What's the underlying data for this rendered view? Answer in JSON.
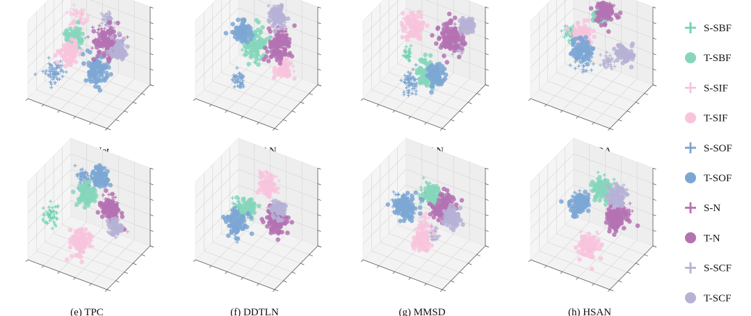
{
  "chart_data": {
    "type": "scatter",
    "projection": "3d-tsne",
    "grid": true,
    "axis_ranges": {
      "x": [
        0,
        10
      ],
      "y": [
        0,
        10
      ],
      "z": [
        0,
        10
      ]
    },
    "panels": [
      {
        "caption": "(a) ResNet",
        "clusters": [
          {
            "cls": "S-SBF",
            "x": 3.6,
            "y": 4.3,
            "z": 6.6,
            "s": 0.55,
            "n": 55
          },
          {
            "cls": "T-SBF",
            "x": 3.3,
            "y": 4.6,
            "z": 6.3,
            "s": 0.6,
            "n": 70
          },
          {
            "cls": "S-SIF",
            "x": 3.4,
            "y": 5.6,
            "z": 8.5,
            "s": 0.65,
            "n": 60
          },
          {
            "cls": "T-SIF",
            "x": 3.5,
            "y": 3.3,
            "z": 5.6,
            "s": 0.7,
            "n": 70
          },
          {
            "cls": "S-SOF",
            "x": 1.5,
            "y": 3.3,
            "z": 2.2,
            "s": 0.7,
            "n": 60
          },
          {
            "cls": "T-SOF",
            "x": 6.3,
            "y": 4.2,
            "z": 4.0,
            "s": 0.8,
            "n": 90
          },
          {
            "cls": "S-N",
            "x": 6.3,
            "y": 6.3,
            "z": 6.8,
            "s": 0.85,
            "n": 55
          },
          {
            "cls": "T-N",
            "x": 6.6,
            "y": 6.1,
            "z": 6.2,
            "s": 0.9,
            "n": 95
          },
          {
            "cls": "S-SCF",
            "x": 6.4,
            "y": 6.6,
            "z": 8.9,
            "s": 0.5,
            "n": 40
          },
          {
            "cls": "T-SCF",
            "x": 8.7,
            "y": 5.1,
            "z": 6.7,
            "s": 0.6,
            "n": 70
          }
        ]
      },
      {
        "caption": "(b) CDAN",
        "clusters": [
          {
            "cls": "S-SBF",
            "x": 4.4,
            "y": 5.2,
            "z": 5.6,
            "s": 0.7,
            "n": 60
          },
          {
            "cls": "T-SBF",
            "x": 4.6,
            "y": 5.4,
            "z": 5.6,
            "s": 0.75,
            "n": 85
          },
          {
            "cls": "S-SIF",
            "x": 9.5,
            "y": 3.4,
            "z": 5.9,
            "s": 0.45,
            "n": 40
          },
          {
            "cls": "T-SIF",
            "x": 9.3,
            "y": 3.4,
            "z": 5.5,
            "s": 0.55,
            "n": 45
          },
          {
            "cls": "S-SOF",
            "x": 4.0,
            "y": 3.0,
            "z": 2.2,
            "s": 0.55,
            "n": 45
          },
          {
            "cls": "T-SOF",
            "x": 2.5,
            "y": 6.3,
            "z": 6.2,
            "s": 0.6,
            "n": 80
          },
          {
            "cls": "S-N",
            "x": 7.6,
            "y": 5.8,
            "z": 7.8,
            "s": 0.6,
            "n": 45
          },
          {
            "cls": "T-N",
            "x": 7.4,
            "y": 5.5,
            "z": 6.4,
            "s": 0.85,
            "n": 95
          },
          {
            "cls": "S-SCF",
            "x": 6.0,
            "y": 7.6,
            "z": 8.6,
            "s": 0.55,
            "n": 40
          },
          {
            "cls": "T-SCF",
            "x": 6.2,
            "y": 7.6,
            "z": 8.8,
            "s": 0.6,
            "n": 70
          }
        ]
      },
      {
        "caption": "(c) DALN",
        "clusters": [
          {
            "cls": "S-SBF",
            "x": 3.2,
            "y": 4.5,
            "z": 4.4,
            "s": 0.35,
            "n": 30
          },
          {
            "cls": "T-SBF",
            "x": 6.4,
            "y": 3.3,
            "z": 3.8,
            "s": 0.7,
            "n": 80
          },
          {
            "cls": "S-SIF",
            "x": 3.7,
            "y": 5.2,
            "z": 8.0,
            "s": 0.8,
            "n": 60
          },
          {
            "cls": "T-SIF",
            "x": 3.6,
            "y": 5.0,
            "z": 7.6,
            "s": 0.8,
            "n": 75
          },
          {
            "cls": "S-SOF",
            "x": 4.6,
            "y": 2.8,
            "z": 2.3,
            "s": 0.7,
            "n": 60
          },
          {
            "cls": "T-SOF",
            "x": 7.3,
            "y": 3.3,
            "z": 4.0,
            "s": 0.6,
            "n": 70
          },
          {
            "cls": "S-N",
            "x": 7.6,
            "y": 6.5,
            "z": 7.2,
            "s": 0.8,
            "n": 50
          },
          {
            "cls": "T-N",
            "x": 7.5,
            "y": 6.5,
            "z": 7.0,
            "s": 0.9,
            "n": 95
          },
          {
            "cls": "S-SCF",
            "x": 8.4,
            "y": 6.4,
            "z": 6.5,
            "s": 0.45,
            "n": 35
          },
          {
            "cls": "T-SCF",
            "x": 9.1,
            "y": 7.4,
            "z": 8.7,
            "s": 0.45,
            "n": 50
          }
        ]
      },
      {
        "caption": "(d) ACDA",
        "clusters": [
          {
            "cls": "S-SBF",
            "x": 2.2,
            "y": 5.6,
            "z": 6.0,
            "s": 0.65,
            "n": 60
          },
          {
            "cls": "T-SBF",
            "x": 4.8,
            "y": 6.8,
            "z": 8.5,
            "s": 0.45,
            "n": 45
          },
          {
            "cls": "S-SIF",
            "x": 3.3,
            "y": 5.6,
            "z": 6.4,
            "s": 0.55,
            "n": 45
          },
          {
            "cls": "T-SIF",
            "x": 3.6,
            "y": 5.6,
            "z": 6.4,
            "s": 0.6,
            "n": 75
          },
          {
            "cls": "S-SOF",
            "x": 4.3,
            "y": 4.3,
            "z": 4.6,
            "s": 0.7,
            "n": 55
          },
          {
            "cls": "T-SOF",
            "x": 4.0,
            "y": 4.6,
            "z": 5.2,
            "s": 0.7,
            "n": 75
          },
          {
            "cls": "S-N",
            "x": 5.4,
            "y": 7.6,
            "z": 9.5,
            "s": 0.65,
            "n": 45
          },
          {
            "cls": "T-N",
            "x": 5.4,
            "y": 7.4,
            "z": 9.2,
            "s": 0.75,
            "n": 90
          },
          {
            "cls": "S-SCF",
            "x": 7.1,
            "y": 4.8,
            "z": 4.9,
            "s": 0.45,
            "n": 35
          },
          {
            "cls": "T-SCF",
            "x": 9.0,
            "y": 5.2,
            "z": 6.4,
            "s": 0.55,
            "n": 65
          }
        ]
      },
      {
        "caption": "(e) TPC",
        "clusters": [
          {
            "cls": "S-SBF",
            "x": 1.0,
            "y": 3.4,
            "z": 4.3,
            "s": 0.55,
            "n": 45
          },
          {
            "cls": "T-SBF",
            "x": 4.4,
            "y": 5.6,
            "z": 7.0,
            "s": 0.65,
            "n": 85
          },
          {
            "cls": "S-SIF",
            "x": 5.0,
            "y": 3.2,
            "z": 3.0,
            "s": 0.7,
            "n": 55
          },
          {
            "cls": "T-SIF",
            "x": 5.2,
            "y": 2.8,
            "z": 2.6,
            "s": 0.75,
            "n": 75
          },
          {
            "cls": "S-SOF",
            "x": 3.8,
            "y": 6.2,
            "z": 8.4,
            "s": 0.6,
            "n": 60
          },
          {
            "cls": "T-SOF",
            "x": 5.4,
            "y": 6.8,
            "z": 8.8,
            "s": 0.55,
            "n": 80
          },
          {
            "cls": "S-N",
            "x": 7.3,
            "y": 5.6,
            "z": 6.7,
            "s": 0.6,
            "n": 45
          },
          {
            "cls": "T-N",
            "x": 7.6,
            "y": 5.4,
            "z": 6.1,
            "s": 0.7,
            "n": 90
          },
          {
            "cls": "S-SCF",
            "x": 8.5,
            "y": 4.4,
            "z": 5.1,
            "s": 0.5,
            "n": 35
          },
          {
            "cls": "T-SCF",
            "x": 8.6,
            "y": 4.6,
            "z": 5.0,
            "s": 0.45,
            "n": 40
          }
        ]
      },
      {
        "caption": "(f) DDTLN",
        "clusters": [
          {
            "cls": "S-SBF",
            "x": 3.2,
            "y": 4.8,
            "z": 5.2,
            "s": 0.65,
            "n": 50
          },
          {
            "cls": "T-SBF",
            "x": 3.8,
            "y": 5.0,
            "z": 5.4,
            "s": 0.55,
            "n": 65
          },
          {
            "cls": "S-SIF",
            "x": 5.6,
            "y": 6.6,
            "z": 8.6,
            "s": 0.65,
            "n": 55
          },
          {
            "cls": "T-SIF",
            "x": 5.6,
            "y": 6.3,
            "z": 8.0,
            "s": 0.6,
            "n": 65
          },
          {
            "cls": "S-SOF",
            "x": 3.4,
            "y": 3.2,
            "z": 3.9,
            "s": 0.5,
            "n": 40
          },
          {
            "cls": "T-SOF",
            "x": 3.0,
            "y": 3.8,
            "z": 4.0,
            "s": 0.7,
            "n": 85
          },
          {
            "cls": "S-N",
            "x": 7.8,
            "y": 4.7,
            "z": 5.4,
            "s": 0.55,
            "n": 40
          },
          {
            "cls": "T-N",
            "x": 7.6,
            "y": 4.8,
            "z": 5.2,
            "s": 0.75,
            "n": 100
          },
          {
            "cls": "S-SCF",
            "x": 7.3,
            "y": 5.4,
            "z": 6.3,
            "s": 0.5,
            "n": 40
          },
          {
            "cls": "T-SCF",
            "x": 7.6,
            "y": 5.3,
            "z": 6.4,
            "s": 0.5,
            "n": 50
          }
        ]
      },
      {
        "caption": "(g) MMSD",
        "clusters": [
          {
            "cls": "S-SBF",
            "x": 4.8,
            "y": 6.3,
            "z": 7.0,
            "s": 0.65,
            "n": 50
          },
          {
            "cls": "T-SBF",
            "x": 5.6,
            "y": 6.0,
            "z": 7.0,
            "s": 0.55,
            "n": 65
          },
          {
            "cls": "S-SIF",
            "x": 5.6,
            "y": 4.0,
            "z": 4.6,
            "s": 0.45,
            "n": 40
          },
          {
            "cls": "T-SIF",
            "x": 5.8,
            "y": 3.0,
            "z": 3.1,
            "s": 0.6,
            "n": 65
          },
          {
            "cls": "S-SOF",
            "x": 2.2,
            "y": 5.0,
            "z": 5.2,
            "s": 0.65,
            "n": 55
          },
          {
            "cls": "T-SOF",
            "x": 2.6,
            "y": 5.0,
            "z": 5.0,
            "s": 0.75,
            "n": 90
          },
          {
            "cls": "S-N",
            "x": 7.1,
            "y": 5.8,
            "z": 6.6,
            "s": 0.7,
            "n": 45
          },
          {
            "cls": "T-N",
            "x": 7.1,
            "y": 5.6,
            "z": 6.2,
            "s": 0.8,
            "n": 90
          },
          {
            "cls": "S-SCF",
            "x": 6.8,
            "y": 3.8,
            "z": 3.9,
            "s": 0.45,
            "n": 35
          },
          {
            "cls": "T-SCF",
            "x": 8.6,
            "y": 5.0,
            "z": 5.9,
            "s": 0.55,
            "n": 65
          }
        ]
      },
      {
        "caption": "(h) HSAN",
        "clusters": [
          {
            "cls": "S-SBF",
            "x": 5.4,
            "y": 6.6,
            "z": 8.0,
            "s": 0.7,
            "n": 55
          },
          {
            "cls": "T-SBF",
            "x": 5.6,
            "y": 6.4,
            "z": 7.6,
            "s": 0.65,
            "n": 75
          },
          {
            "cls": "S-SIF",
            "x": 5.8,
            "y": 2.9,
            "z": 2.4,
            "s": 0.6,
            "n": 45
          },
          {
            "cls": "T-SIF",
            "x": 5.8,
            "y": 2.8,
            "z": 2.3,
            "s": 0.65,
            "n": 85
          },
          {
            "cls": "S-SOF",
            "x": 3.0,
            "y": 5.4,
            "z": 5.4,
            "s": 0.6,
            "n": 45
          },
          {
            "cls": "T-SOF",
            "x": 3.2,
            "y": 5.4,
            "z": 5.4,
            "s": 0.7,
            "n": 95
          },
          {
            "cls": "S-N",
            "x": 8.2,
            "y": 5.6,
            "z": 6.0,
            "s": 0.55,
            "n": 40
          },
          {
            "cls": "T-N",
            "x": 8.0,
            "y": 5.2,
            "z": 5.6,
            "s": 0.75,
            "n": 90
          },
          {
            "cls": "S-SCF",
            "x": 7.6,
            "y": 6.8,
            "z": 7.6,
            "s": 0.5,
            "n": 40
          },
          {
            "cls": "T-SCF",
            "x": 7.4,
            "y": 6.4,
            "z": 7.3,
            "s": 0.6,
            "n": 60
          }
        ]
      }
    ]
  },
  "legend": {
    "placement": "right",
    "items": [
      {
        "label": "S-SBF",
        "marker": "plus",
        "color": "#72d1b4"
      },
      {
        "label": "T-SBF",
        "marker": "circle",
        "color": "#86d6bc"
      },
      {
        "label": "S-SIF",
        "marker": "plus",
        "color": "#f7c3dc"
      },
      {
        "label": "T-SIF",
        "marker": "circle",
        "color": "#f8c4dd"
      },
      {
        "label": "S-SOF",
        "marker": "plus",
        "color": "#7ba4d2"
      },
      {
        "label": "T-SOF",
        "marker": "circle",
        "color": "#7da7d3"
      },
      {
        "label": "S-N",
        "marker": "plus",
        "color": "#b76fb4"
      },
      {
        "label": "T-N",
        "marker": "circle",
        "color": "#b472b3"
      },
      {
        "label": "S-SCF",
        "marker": "plus",
        "color": "#b4b1d3"
      },
      {
        "label": "T-SCF",
        "marker": "circle",
        "color": "#b6b2d6"
      }
    ]
  }
}
